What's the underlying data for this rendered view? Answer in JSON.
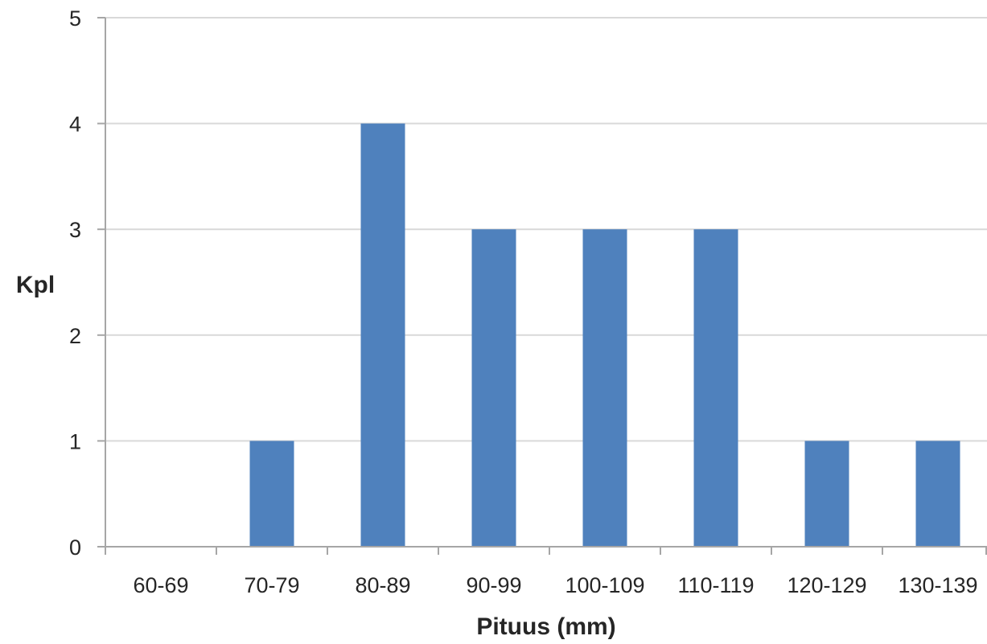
{
  "chart_data": {
    "type": "bar",
    "categories": [
      "60-69",
      "70-79",
      "80-89",
      "90-99",
      "100-109",
      "110-119",
      "120-129",
      "130-139"
    ],
    "values": [
      0,
      1,
      4,
      3,
      3,
      3,
      1,
      1
    ],
    "xlabel": "Pituus (mm)",
    "ylabel": "Kpl",
    "ylim": [
      0,
      5
    ],
    "yticks": [
      0,
      1,
      2,
      3,
      4,
      5
    ],
    "grid": true,
    "legend": "none",
    "bar_color": "#4f81bd"
  }
}
